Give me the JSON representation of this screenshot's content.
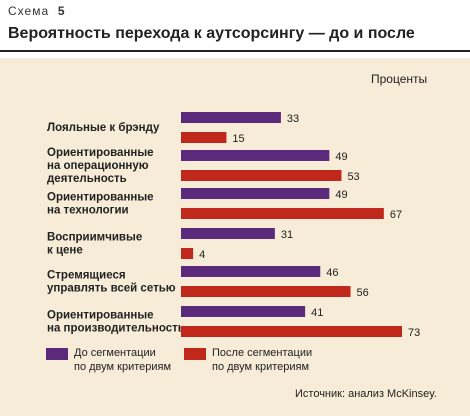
{
  "header": {
    "scheme_label": "Схема",
    "scheme_number": "5",
    "title": "Вероятность перехода к аутсорсингу — до и после"
  },
  "units": "Проценты",
  "colors": {
    "before": "#5b2a7c",
    "after": "#c0281c"
  },
  "legend": {
    "before": [
      "До сегментации",
      "по двум критериям"
    ],
    "after": [
      "После сегментации",
      "по двум критериям"
    ]
  },
  "source": "Источник: анализ McKinsey.",
  "chart_data": {
    "type": "bar",
    "orientation": "horizontal",
    "categories": [
      [
        "Лояльные к брэнду"
      ],
      [
        "Ориентированные",
        "на операционную",
        "деятельность"
      ],
      [
        "Ориентированные",
        "на технологии"
      ],
      [
        "Восприимчивые",
        "к цене"
      ],
      [
        "Стремящиеся",
        "управлять всей сетью"
      ],
      [
        "Ориентированные",
        "на производительность"
      ]
    ],
    "series": [
      {
        "name": "До сегментации по двум критериям",
        "values": [
          33,
          49,
          49,
          31,
          46,
          41
        ]
      },
      {
        "name": "После сегментации по двум критериям",
        "values": [
          15,
          53,
          67,
          4,
          56,
          73
        ]
      }
    ],
    "ylabel": "Проценты",
    "grid": false
  }
}
